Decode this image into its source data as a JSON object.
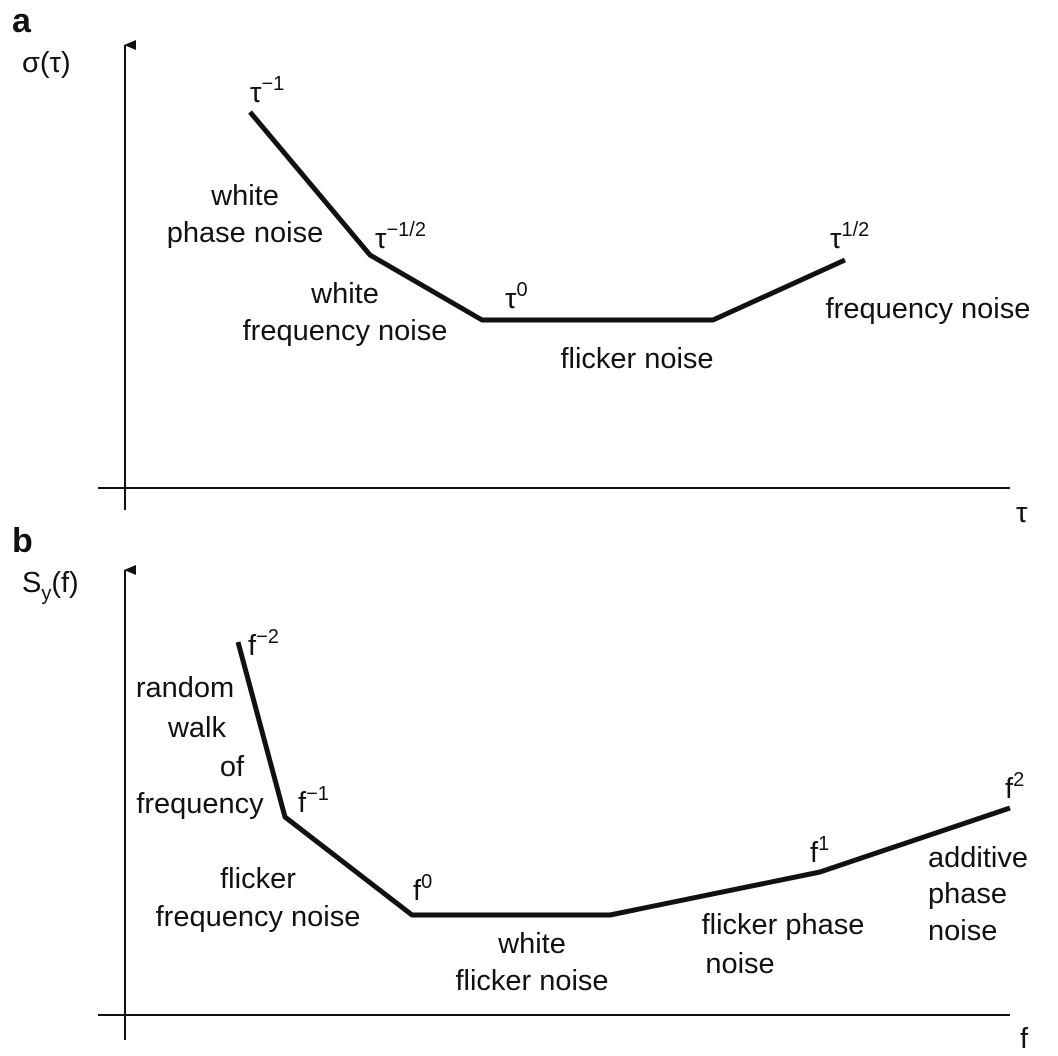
{
  "panel_a": {
    "label": "a",
    "y_label": "σ(τ)",
    "x_label": "τ",
    "segments": [
      {
        "exponent": {
          "base": "τ",
          "exp": "−1"
        },
        "noise": [
          "white",
          "phase noise"
        ]
      },
      {
        "exponent": {
          "base": "τ",
          "exp": "−1/2"
        },
        "noise": [
          "white",
          "frequency noise"
        ]
      },
      {
        "exponent": {
          "base": "τ",
          "exp": "0"
        },
        "noise": [
          "flicker noise"
        ]
      },
      {
        "exponent": {
          "base": "τ",
          "exp": "1/2"
        },
        "noise": [
          "frequency noise"
        ]
      }
    ]
  },
  "panel_b": {
    "label": "b",
    "y_label": {
      "base": "S",
      "sub": "y",
      "rest": "(f)"
    },
    "x_label": "f",
    "segments": [
      {
        "exponent": {
          "base": "f",
          "exp": "−2"
        },
        "noise": [
          "random",
          "walk",
          "of",
          "frequency"
        ]
      },
      {
        "exponent": {
          "base": "f",
          "exp": "−1"
        },
        "noise": [
          "flicker",
          "frequency noise"
        ]
      },
      {
        "exponent": {
          "base": "f",
          "exp": "0"
        },
        "noise": [
          "white",
          "flicker noise"
        ]
      },
      {
        "exponent": {
          "base": "f",
          "exp": "1"
        },
        "noise": [
          "flicker phase",
          "noise"
        ]
      },
      {
        "exponent": {
          "base": "f",
          "exp": "2"
        },
        "noise": [
          "additive",
          "phase",
          "noise"
        ]
      }
    ]
  }
}
